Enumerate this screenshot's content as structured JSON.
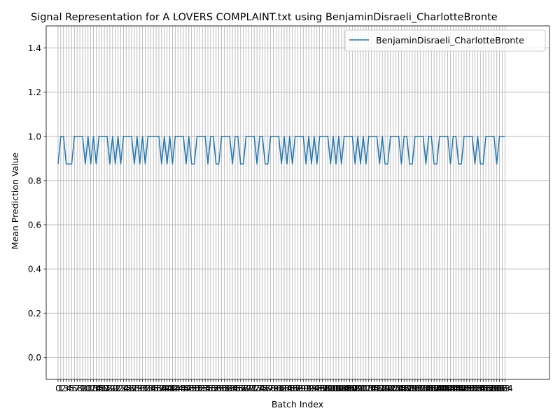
{
  "chart_data": {
    "type": "line",
    "title": "Signal Representation for A LOVERS COMPLAINT.txt using BenjaminDisraeli_CharlotteBronte",
    "xlabel": "Batch Index",
    "ylabel": "Mean Prediction Value",
    "xlim": [
      -4.35,
      180.35
    ],
    "ylim": [
      -0.1,
      1.5
    ],
    "yticks": [
      0.0,
      0.2,
      0.4,
      0.6,
      0.8,
      1.0,
      1.2,
      1.4
    ],
    "ytick_labels": [
      "0.0",
      "0.2",
      "0.4",
      "0.6",
      "0.8",
      "1.0",
      "1.2",
      "1.4"
    ],
    "grid": true,
    "legend_position": "top-right",
    "series": [
      {
        "name": "BenjaminDisraeli_CharlotteBronte",
        "color": "#1f77b4",
        "values": [
          0.875,
          1,
          1,
          0.875,
          0.875,
          0.875,
          1,
          1,
          1,
          1,
          0.875,
          1,
          0.875,
          1,
          0.875,
          1,
          1,
          1,
          1,
          0.875,
          1,
          0.875,
          1,
          0.875,
          1,
          1,
          1,
          1,
          0.875,
          1,
          0.875,
          1,
          0.875,
          1,
          1,
          1,
          1,
          1,
          0.875,
          1,
          0.875,
          1,
          0.875,
          1,
          1,
          1,
          1,
          0.875,
          1,
          0.875,
          0.875,
          1,
          1,
          1,
          1,
          0.875,
          1,
          1,
          0.875,
          0.875,
          1,
          1,
          1,
          1,
          0.875,
          1,
          1,
          0.875,
          0.875,
          1,
          1,
          1,
          1,
          0.875,
          1,
          1,
          0.875,
          0.875,
          1,
          1,
          1,
          1,
          0.875,
          1,
          0.875,
          1,
          0.875,
          1,
          1,
          1,
          1,
          0.875,
          1,
          0.875,
          1,
          0.875,
          1,
          1,
          1,
          1,
          0.875,
          1,
          0.875,
          1,
          0.875,
          1,
          1,
          1,
          1,
          0.875,
          1,
          0.875,
          1,
          0.875,
          1,
          1,
          1,
          1,
          0.875,
          1,
          0.875,
          0.875,
          1,
          1,
          1,
          1,
          0.875,
          1,
          1,
          0.875,
          0.875,
          1,
          1,
          1,
          1,
          0.875,
          1,
          1,
          0.875,
          0.875,
          1,
          1,
          1,
          1,
          0.875,
          1,
          1,
          0.875,
          0.875,
          1,
          1,
          1,
          1,
          0.875,
          1,
          0.875,
          0.875,
          1,
          1,
          1,
          1,
          0.875,
          1,
          1,
          1
        ]
      }
    ]
  }
}
